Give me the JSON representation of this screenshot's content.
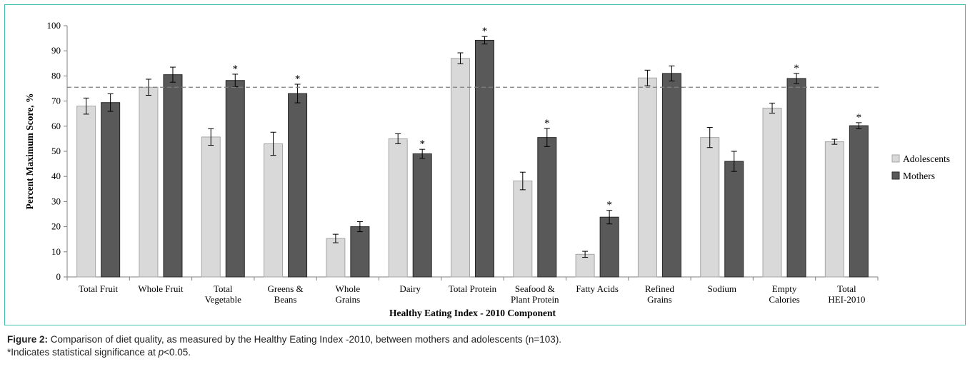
{
  "chart_data": {
    "type": "bar",
    "xlabel": "Healthy Eating Index - 2010 Component",
    "ylabel": "Percent Maximum Score, %",
    "ylim": [
      0,
      100
    ],
    "yticks": [
      0,
      10,
      20,
      30,
      40,
      50,
      60,
      70,
      80,
      90,
      100
    ],
    "grid": false,
    "legend_position": "right",
    "reference_line": 75.5,
    "categories": [
      [
        "Total Fruit"
      ],
      [
        "Whole Fruit"
      ],
      [
        "Total",
        "Vegetable"
      ],
      [
        "Greens &",
        "Beans"
      ],
      [
        "Whole",
        "Grains"
      ],
      [
        "Dairy"
      ],
      [
        "Total Protein"
      ],
      [
        "Seafood &",
        "Plant Protein"
      ],
      [
        "Fatty Acids"
      ],
      [
        "Refined",
        "Grains"
      ],
      [
        "Sodium"
      ],
      [
        "Empty",
        "Calories"
      ],
      [
        "Total",
        "HEI-2010"
      ]
    ],
    "series": [
      {
        "name": "Adolescents",
        "color": "#d9d9d9",
        "values": [
          68,
          75.5,
          55.7,
          53,
          15.3,
          55,
          87,
          38.2,
          9,
          79.2,
          55.5,
          67.2,
          53.8
        ],
        "errors": [
          3.2,
          3.2,
          3.3,
          4.6,
          1.7,
          2.0,
          2.2,
          3.5,
          1.2,
          3.1,
          4.0,
          2.0,
          1.0
        ]
      },
      {
        "name": "Mothers",
        "color": "#595959",
        "values": [
          69.4,
          80.5,
          78.2,
          73,
          20,
          49,
          94.2,
          55.5,
          23.8,
          81,
          46,
          79,
          60.2
        ],
        "errors": [
          3.5,
          3.0,
          2.5,
          3.7,
          2.0,
          1.8,
          1.5,
          3.6,
          2.7,
          3.0,
          4.0,
          2.0,
          1.2
        ],
        "significant": [
          false,
          false,
          true,
          true,
          false,
          true,
          true,
          true,
          true,
          false,
          false,
          true,
          true
        ]
      }
    ],
    "significance_marker": "*"
  },
  "caption": {
    "figure_label": "Figure 2:",
    "text": " Comparison of diet quality, as measured by the Healthy Eating Index -2010, between mothers and adolescents (n=103).",
    "note_prefix": "*Indicates statistical significance at ",
    "note_italic": "p",
    "note_suffix": "<0.05."
  }
}
